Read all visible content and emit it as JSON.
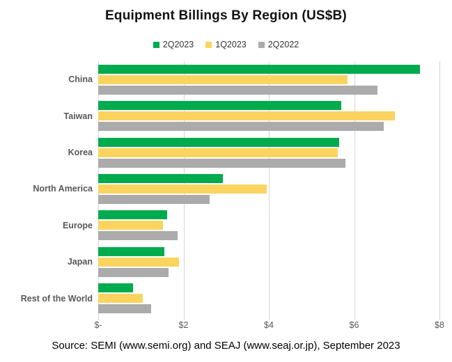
{
  "title": "Equipment Billings By Region (US$B)",
  "source": "Source: SEMI (www.semi.org) and SEAJ (www.seaj.or.jp), September 2023",
  "legend": [
    {
      "label": "2Q2023",
      "color": "#00AB4E"
    },
    {
      "label": "1Q2023",
      "color": "#FAD45F"
    },
    {
      "label": "2Q2022",
      "color": "#ABABAB"
    }
  ],
  "chart_data": {
    "type": "bar",
    "orientation": "horizontal",
    "title": "Equipment Billings By Region (US$B)",
    "categories": [
      "China",
      "Taiwan",
      "Korea",
      "North America",
      "Europe",
      "Japan",
      "Rest of the World"
    ],
    "series": [
      {
        "name": "2Q2023",
        "color": "#00AB4E",
        "values": [
          7.55,
          5.69,
          5.65,
          2.93,
          1.61,
          1.55,
          0.82
        ]
      },
      {
        "name": "1Q2023",
        "color": "#FAD45F",
        "values": [
          5.85,
          6.95,
          5.61,
          3.95,
          1.52,
          1.9,
          1.05
        ]
      },
      {
        "name": "2Q2022",
        "color": "#ABABAB",
        "values": [
          6.55,
          6.7,
          5.8,
          2.62,
          1.86,
          1.65,
          1.24
        ]
      }
    ],
    "xlim": [
      0,
      8
    ],
    "x_ticks": [
      0,
      2,
      4,
      6,
      8
    ],
    "x_tick_labels": [
      "$-",
      "$2",
      "$4",
      "$6",
      "$8"
    ],
    "grid": "vertical",
    "legend_position": "top"
  }
}
